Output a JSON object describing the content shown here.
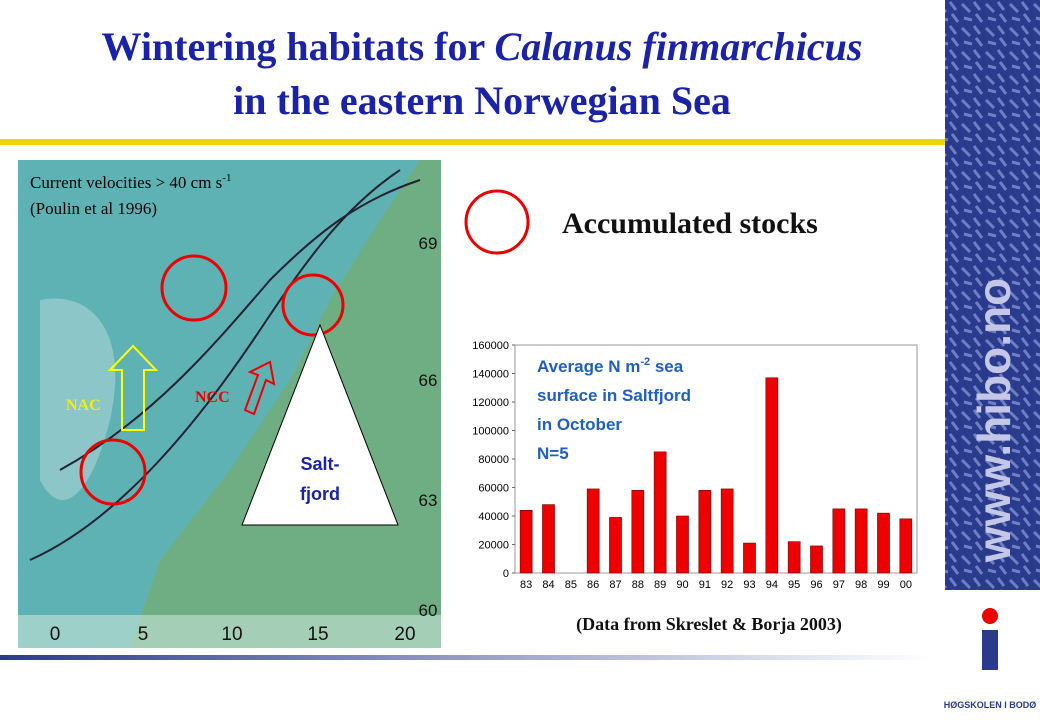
{
  "header": {
    "title_line1_plain": "Wintering habitats for ",
    "title_line1_italic": "Calanus finmarchicus",
    "title_line2": "in the eastern Norwegian Sea"
  },
  "map": {
    "source_line1": "Current velocities > 40 cm s",
    "source_exp": "-1",
    "source_line2": "(Poulin et al 1996)",
    "label_nac": "NAC",
    "label_ncc": "NCC",
    "label_salt": "Salt-",
    "label_fjord": "fjord",
    "lon_labels": [
      "0",
      "5",
      "10",
      "15",
      "20"
    ],
    "lat_labels": [
      "69",
      "66",
      "63",
      "60"
    ]
  },
  "legend": {
    "label": "Accumulated stocks"
  },
  "source": "(Data from Skreslet & Borja 2003)",
  "side": {
    "url": "www.hibo.no",
    "logo": "HØGSKOLEN I BODØ"
  },
  "chart_data": {
    "type": "bar",
    "annotation": {
      "line1": "Average N m",
      "line1_exp": "-2",
      "line1_end": " sea",
      "line2": "surface in Saltfjord",
      "line3": "in October",
      "line4": "N=5"
    },
    "categories": [
      "83",
      "84",
      "85",
      "86",
      "87",
      "88",
      "89",
      "90",
      "91",
      "92",
      "93",
      "94",
      "95",
      "96",
      "97",
      "98",
      "99",
      "00"
    ],
    "values": [
      44000,
      48000,
      null,
      59000,
      39000,
      58000,
      85000,
      40000,
      58000,
      59000,
      21000,
      137000,
      22000,
      19000,
      45000,
      45000,
      42000,
      38000
    ],
    "color": "#ee0000",
    "ylim": [
      0,
      160000
    ],
    "yticks": [
      0,
      20000,
      40000,
      60000,
      80000,
      100000,
      120000,
      140000,
      160000
    ]
  }
}
